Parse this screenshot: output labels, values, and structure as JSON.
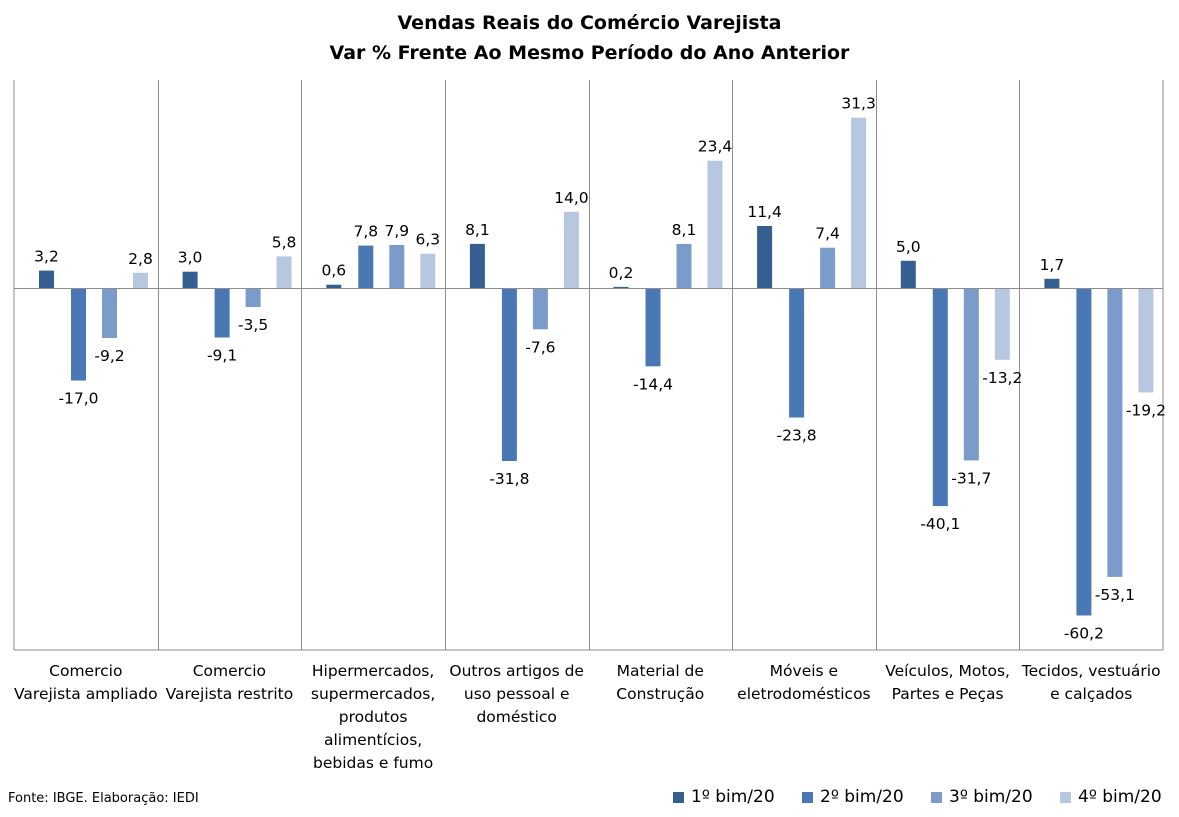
{
  "title": "Vendas Reais do Comércio Varejista",
  "subtitle": "Var % Frente Ao Mesmo Período do Ano Anterior",
  "source": "Fonte: IBGE. Elaboração: IEDI",
  "chart_data": {
    "type": "bar",
    "title": "Vendas Reais do Comércio Varejista",
    "subtitle": "Var % Frente Ao Mesmo Período do Ano Anterior",
    "categories": [
      "Comercio Varejista ampliado",
      "Comercio Varejista restrito",
      "Hipermercados, supermercados, produtos alimentícios, bebidas e fumo",
      "Outros artigos de uso pessoal e doméstico",
      "Material de Construção",
      "Móveis e eletrodomésticos",
      "Veículos, Motos, Partes e Peças",
      "Tecidos, vestuário e calçados"
    ],
    "series": [
      {
        "name": "1º bim/20",
        "color": "#365f91",
        "values": [
          3.2,
          3.0,
          0.6,
          8.1,
          0.2,
          11.4,
          5.0,
          1.7
        ],
        "labels": [
          "3,2",
          "3,0",
          "0,6",
          "8,1",
          "0,2",
          "11,4",
          "5,0",
          "1,7"
        ]
      },
      {
        "name": "2º bim/20",
        "color": "#4a78b5",
        "values": [
          -17.0,
          -9.1,
          7.8,
          -31.8,
          -14.4,
          -23.8,
          -40.1,
          -60.2
        ],
        "labels": [
          "-17,0",
          "-9,1",
          "7,8",
          "-31,8",
          "-14,4",
          "-23,8",
          "-40,1",
          "-60,2"
        ]
      },
      {
        "name": "3º bim/20",
        "color": "#7b9bcb",
        "values": [
          -9.2,
          -3.5,
          7.9,
          -7.6,
          8.1,
          7.4,
          -31.7,
          -53.1
        ],
        "labels": [
          "-9,2",
          "-3,5",
          "7,9",
          "-7,6",
          "8,1",
          "7,4",
          "-31,7",
          "-53,1"
        ]
      },
      {
        "name": "4º bim/20",
        "color": "#b8c7e0",
        "values": [
          2.8,
          5.8,
          6.3,
          14.0,
          23.4,
          31.3,
          -13.2,
          -19.2
        ],
        "labels": [
          "2,8",
          "5,8",
          "6,3",
          "14,0",
          "23,4",
          "31,3",
          "-13,2",
          "-19,2"
        ]
      }
    ],
    "ylim": [
      -66,
      38
    ],
    "grid": false,
    "legend": "bottom-right"
  }
}
